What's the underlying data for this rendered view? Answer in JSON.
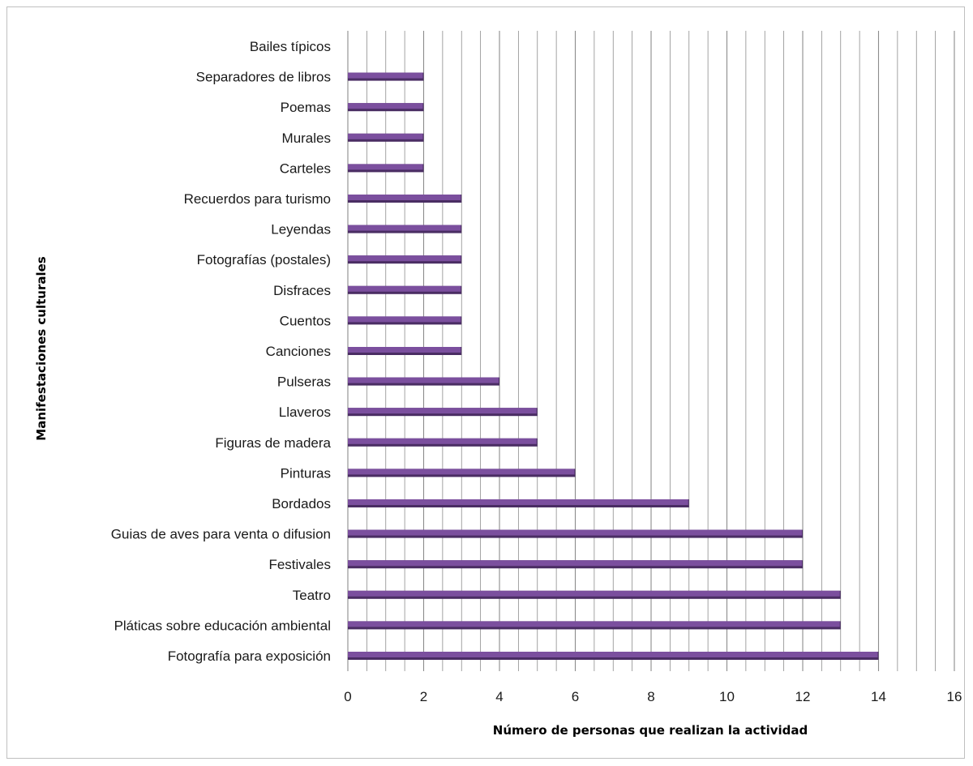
{
  "chart_data": {
    "type": "bar",
    "orientation": "horizontal",
    "title": "",
    "xlabel": "Número de personas que realizan la actividad",
    "ylabel": "Manifestaciones culturales",
    "xlim": [
      0,
      16
    ],
    "x_ticks": [
      "0",
      "2",
      "4",
      "6",
      "8",
      "10",
      "12",
      "14",
      "16"
    ],
    "grid": "vertical",
    "legend": "none",
    "bar_color": "#7b4f9e",
    "bar_shadow_color": "#4a2d63",
    "grid_color": "#8c8c8c",
    "categories": [
      "Bailes típicos",
      "Separadores de libros",
      "Poemas",
      "Murales",
      "Carteles",
      "Recuerdos para turismo",
      "Leyendas",
      "Fotografías (postales)",
      "Disfraces",
      "Cuentos",
      "Canciones",
      "Pulseras",
      "Llaveros",
      "Figuras de madera",
      "Pinturas",
      "Bordados",
      "Guias de aves para venta o difusion",
      "Festivales",
      "Teatro",
      "Pláticas sobre educación ambiental",
      "Fotografía para exposición"
    ],
    "values": [
      0,
      2,
      2,
      2,
      2,
      3,
      3,
      3,
      3,
      3,
      3,
      4,
      5,
      5,
      6,
      9,
      12,
      12,
      13,
      13,
      14
    ]
  }
}
